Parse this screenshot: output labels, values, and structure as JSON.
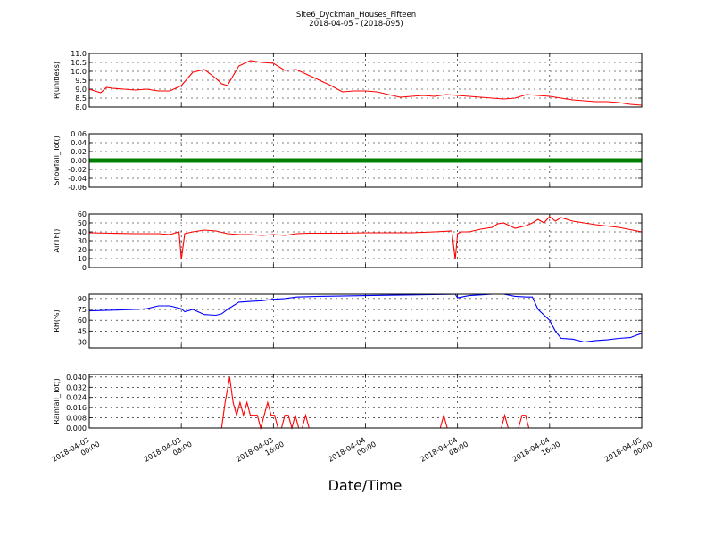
{
  "figure": {
    "title": "Site6_Dyckman_Houses_Fifteen",
    "subtitle": "2018-04-05 - (2018-095)",
    "xlabel": "Date/Time"
  },
  "chart_data": [
    {
      "type": "line",
      "ylabel": "P(unitless)",
      "ylim": [
        8.0,
        11.0
      ],
      "yticks": [
        "8.0",
        "8.5",
        "9.0",
        "9.5",
        "10.0",
        "10.5",
        "11.0"
      ],
      "color": "#ff0000",
      "grid": true,
      "x_hours": [
        0,
        1,
        1.5,
        2,
        3,
        4,
        5,
        6,
        7,
        8,
        9,
        10,
        11,
        11.5,
        12,
        13,
        14,
        15,
        16,
        17,
        18,
        19,
        20,
        21,
        22,
        23,
        24,
        25,
        26,
        27,
        28,
        29,
        30,
        31,
        32,
        33,
        34,
        35,
        36,
        37,
        38,
        39,
        40,
        41,
        42,
        43,
        44,
        45,
        46,
        47,
        48
      ],
      "values": [
        9.0,
        8.8,
        9.1,
        9.05,
        9.0,
        8.95,
        9.0,
        8.9,
        8.9,
        9.2,
        9.95,
        10.1,
        9.6,
        9.3,
        9.2,
        10.3,
        10.6,
        10.5,
        10.45,
        10.05,
        10.1,
        9.8,
        9.5,
        9.2,
        8.85,
        8.9,
        8.9,
        8.85,
        8.7,
        8.55,
        8.6,
        8.65,
        8.6,
        8.7,
        8.65,
        8.6,
        8.55,
        8.5,
        8.45,
        8.5,
        8.7,
        8.65,
        8.6,
        8.5,
        8.4,
        8.35,
        8.3,
        8.3,
        8.25,
        8.15,
        8.1
      ]
    },
    {
      "type": "scatter",
      "ylabel": "Snowfall_Tot()",
      "ylim": [
        -0.06,
        0.06
      ],
      "yticks": [
        "-0.06",
        "-0.04",
        "-0.02",
        "0.00",
        "0.02",
        "0.04",
        "0.06"
      ],
      "color": "#008000",
      "grid": true,
      "x_hours": [
        0,
        48
      ],
      "values": [
        0.0,
        0.0
      ]
    },
    {
      "type": "line",
      "ylabel": "AirTF()",
      "ylim": [
        0,
        60
      ],
      "yticks": [
        "0",
        "10",
        "20",
        "30",
        "40",
        "50",
        "60"
      ],
      "color": "#ff0000",
      "grid": true,
      "x_hours": [
        0,
        2,
        4,
        5,
        6,
        7,
        7.8,
        8,
        8.3,
        9,
        10,
        11,
        12,
        13,
        14,
        15,
        16,
        17,
        18,
        19,
        20,
        22,
        24,
        26,
        28,
        30,
        31.5,
        31.8,
        32,
        32.3,
        33,
        34,
        35,
        35.5,
        36,
        37,
        38,
        38.5,
        39,
        39.5,
        40,
        40.5,
        41,
        42,
        44,
        46,
        48
      ],
      "values": [
        39,
        38.5,
        38,
        38,
        38,
        37,
        40,
        9,
        38,
        40,
        42,
        41,
        38,
        37,
        37,
        36,
        37,
        36,
        38,
        38.5,
        38.5,
        38.5,
        39,
        39,
        39,
        40,
        41,
        9,
        38,
        40,
        40,
        43,
        45,
        49,
        50,
        44,
        47,
        50,
        54,
        50,
        57,
        52,
        56,
        52,
        48,
        45,
        40
      ]
    },
    {
      "type": "line",
      "ylabel": "RH(%)",
      "ylim": [
        22,
        96
      ],
      "yticks": [
        "30",
        "45",
        "60",
        "75",
        "90"
      ],
      "color": "#0000ff",
      "grid": true,
      "x_hours": [
        0,
        2,
        4,
        5,
        6,
        7,
        8,
        8.3,
        9,
        10,
        11,
        11.5,
        12,
        13,
        14,
        15,
        16,
        17,
        18,
        20,
        24,
        28,
        31.8,
        32,
        33,
        34,
        35,
        36,
        37,
        38,
        38.5,
        39,
        40,
        40.5,
        41,
        42,
        43,
        44,
        45,
        46,
        47,
        48
      ],
      "values": [
        73,
        74,
        75,
        76,
        80,
        80,
        76,
        72,
        75,
        68,
        67,
        69,
        75,
        85,
        86,
        87,
        89,
        90,
        92,
        93,
        94,
        95,
        96,
        91,
        94,
        95,
        96,
        96,
        93,
        92,
        92,
        75,
        60,
        45,
        35,
        34,
        30,
        32,
        33,
        35,
        36,
        42
      ]
    },
    {
      "type": "line",
      "ylabel": "Rainfall_Tot()",
      "ylim": [
        0.0,
        0.042
      ],
      "yticks": [
        "0.000",
        "0.008",
        "0.016",
        "0.024",
        "0.032",
        "0.040"
      ],
      "color": "#ff0000",
      "grid": true,
      "x_hours": [
        0,
        11.5,
        11.8,
        12.2,
        12.5,
        12.8,
        13.1,
        13.4,
        13.7,
        14.0,
        14.3,
        14.6,
        14.9,
        15.2,
        15.5,
        15.8,
        16.1,
        16.4,
        16.7,
        17.0,
        17.3,
        17.6,
        17.9,
        18.2,
        18.5,
        18.8,
        19.1,
        19.4,
        30.5,
        30.8,
        31.1,
        35.8,
        36.1,
        36.4,
        37.3,
        37.6,
        37.9,
        38.2,
        48
      ],
      "values": [
        0.0,
        0.0,
        0.02,
        0.04,
        0.02,
        0.01,
        0.02,
        0.01,
        0.02,
        0.01,
        0.01,
        0.01,
        0.0,
        0.01,
        0.02,
        0.01,
        0.01,
        0.0,
        0.0,
        0.01,
        0.01,
        0.0,
        0.01,
        0.0,
        0.0,
        0.01,
        0.0,
        0.0,
        0.0,
        0.01,
        0.0,
        0.0,
        0.01,
        0.0,
        0.0,
        0.01,
        0.01,
        0.0,
        0.0
      ]
    }
  ],
  "x_axis": {
    "range_hours": [
      0,
      48
    ],
    "ticks": [
      {
        "hour": 0,
        "label_date": "2018-04-03",
        "label_time": "00:00"
      },
      {
        "hour": 8,
        "label_date": "2018-04-03",
        "label_time": "08:00"
      },
      {
        "hour": 16,
        "label_date": "2018-04-03",
        "label_time": "16:00"
      },
      {
        "hour": 24,
        "label_date": "2018-04-04",
        "label_time": "00:00"
      },
      {
        "hour": 32,
        "label_date": "2018-04-04",
        "label_time": "08:00"
      },
      {
        "hour": 40,
        "label_date": "2018-04-04",
        "label_time": "16:00"
      },
      {
        "hour": 48,
        "label_date": "2018-04-05",
        "label_time": "00:00"
      }
    ]
  }
}
